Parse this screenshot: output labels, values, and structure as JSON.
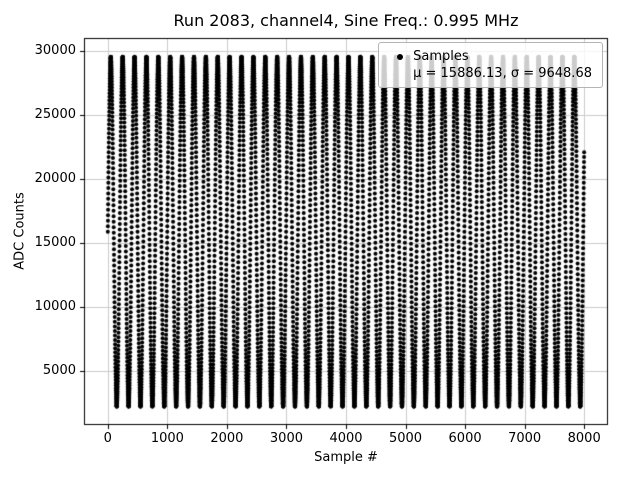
{
  "figure": {
    "title": "Run 2083, channel4, Sine Freq.: 0.995 MHz"
  },
  "chart_data": {
    "type": "scatter",
    "title": "Run 2083, channel4, Sine Freq.: 0.995 MHz",
    "xlabel": "Sample #",
    "ylabel": "ADC Counts",
    "xlim": [
      -400,
      8400
    ],
    "ylim": [
      800,
      31000
    ],
    "xticks": [
      0,
      1000,
      2000,
      3000,
      4000,
      5000,
      6000,
      7000,
      8000
    ],
    "yticks": [
      5000,
      10000,
      15000,
      20000,
      25000,
      30000
    ],
    "grid": true,
    "grid_color": "#cccccc",
    "marker": {
      "shape": "circle",
      "color": "#000000",
      "radius_px": 2
    },
    "legend": {
      "position": "upper right",
      "label": "Samples",
      "stats_label": "μ = 15886.13, σ = 9648.68"
    },
    "series": [
      {
        "name": "Samples",
        "signal": "aliased sine",
        "n_points": 8000,
        "x_start": 0,
        "x_end": 7999,
        "mean": 15886.13,
        "sigma": 9648.68,
        "amplitude": 13645.27,
        "y_min": 2241,
        "y_max": 29531,
        "sine_freq_mhz": 0.995,
        "samples_per_period": 199.6,
        "phase": 0
      }
    ],
    "stats": {
      "mu": 15886.13,
      "sigma": 9648.68
    }
  }
}
